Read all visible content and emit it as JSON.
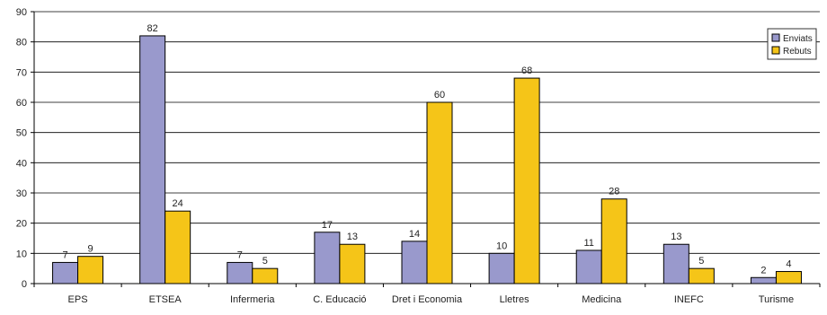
{
  "chart_data": {
    "type": "bar",
    "categories": [
      "EPS",
      "ETSEA",
      "Infermeria",
      "C. Educació",
      "Dret i Economia",
      "Lletres",
      "Medicina",
      "INEFC",
      "Turisme"
    ],
    "series": [
      {
        "name": "Enviats",
        "color": "#9999cc",
        "values": [
          7,
          82,
          7,
          17,
          14,
          10,
          11,
          13,
          2
        ]
      },
      {
        "name": "Rebuts",
        "color": "#f5c518",
        "values": [
          9,
          24,
          5,
          13,
          60,
          68,
          28,
          5,
          4
        ]
      }
    ],
    "ylim": [
      0,
      90
    ],
    "yticks": [
      0,
      10,
      20,
      30,
      40,
      50,
      60,
      70,
      80,
      90
    ],
    "grid": true,
    "legend_position": "top-right",
    "data_labels": true
  }
}
